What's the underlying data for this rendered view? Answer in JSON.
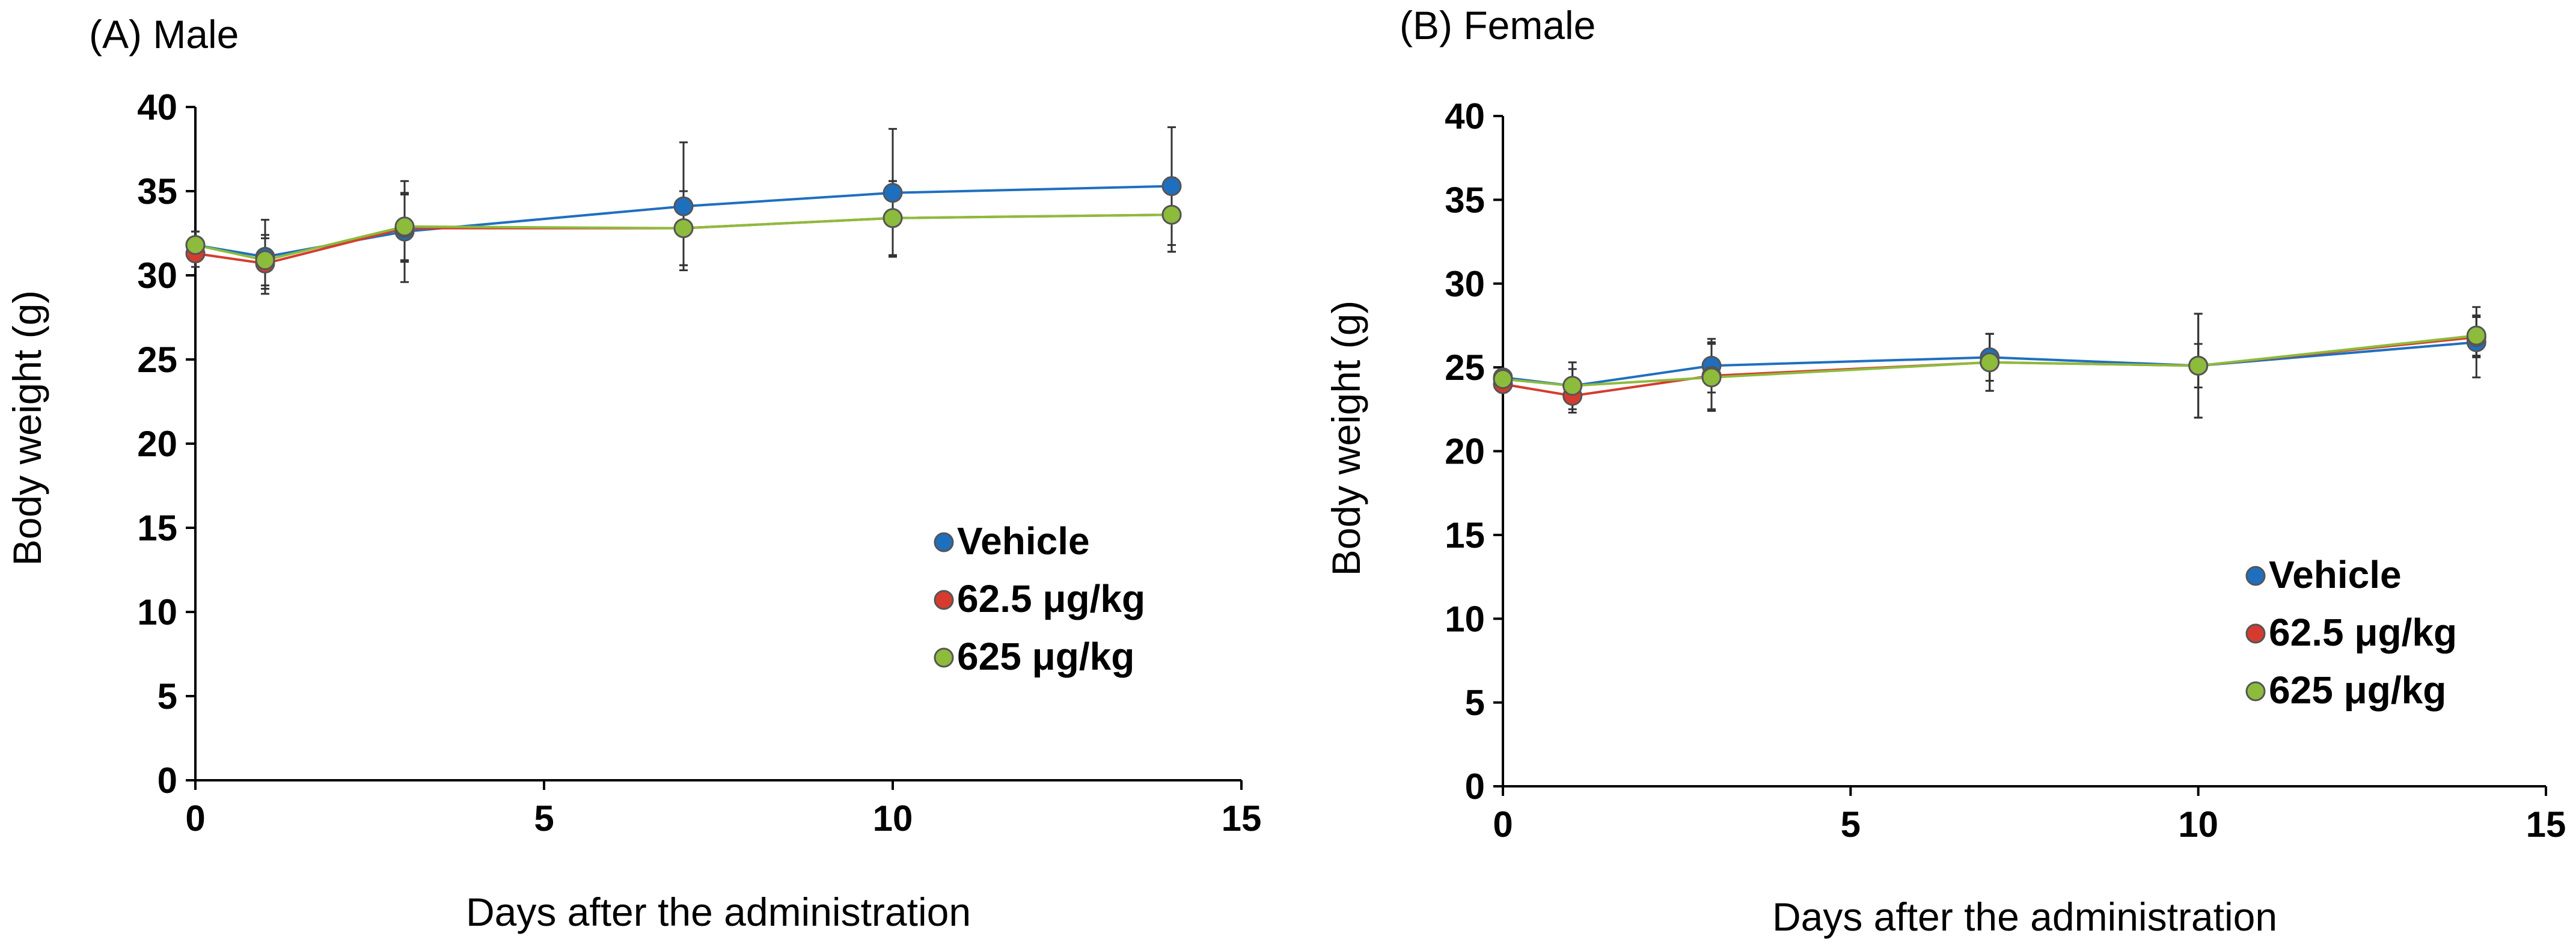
{
  "chart_data": [
    {
      "type": "line",
      "title": "(A) Male",
      "xlabel": "Days after the administration",
      "ylabel": "Body weight (g)",
      "xlim": [
        0,
        15
      ],
      "ylim": [
        0,
        40
      ],
      "xticks": [
        0,
        5,
        10,
        15
      ],
      "yticks": [
        0,
        5,
        10,
        15,
        20,
        25,
        30,
        35,
        40
      ],
      "grid": false,
      "legend_position": "bottom-right",
      "x": [
        0,
        1,
        3,
        7,
        10,
        14
      ],
      "series": [
        {
          "name": "Vehicle",
          "color": "#1f6fbf",
          "values": [
            31.8,
            31.1,
            32.6,
            34.1,
            34.9,
            35.3
          ],
          "err": [
            0.8,
            2.2,
            3.0,
            3.8,
            3.8,
            3.5
          ]
        },
        {
          "name": "62.5 μg/kg",
          "color": "#d63b2f",
          "values": [
            31.3,
            30.7,
            32.8,
            32.8,
            33.4,
            33.6
          ],
          "err": [
            0.8,
            1.5,
            2.0,
            2.2,
            2.2,
            2.2
          ]
        },
        {
          "name": "625 μg/kg",
          "color": "#8dbb3c",
          "values": [
            31.8,
            30.9,
            32.9,
            32.8,
            33.4,
            33.6
          ],
          "err": [
            0.8,
            1.5,
            2.0,
            2.2,
            2.2,
            2.2
          ]
        }
      ]
    },
    {
      "type": "line",
      "title": "(B) Female",
      "xlabel": "Days after the administration",
      "ylabel": "Body weight (g)",
      "xlim": [
        0,
        15
      ],
      "ylim": [
        0,
        40
      ],
      "xticks": [
        0,
        5,
        10,
        15
      ],
      "yticks": [
        0,
        5,
        10,
        15,
        20,
        25,
        30,
        35,
        40
      ],
      "grid": false,
      "legend_position": "bottom-right",
      "x": [
        0,
        1,
        3,
        7,
        10,
        14
      ],
      "series": [
        {
          "name": "Vehicle",
          "color": "#1f6fbf",
          "values": [
            24.4,
            23.9,
            25.1,
            25.6,
            25.1,
            26.5
          ],
          "err": [
            0.5,
            1.4,
            1.6,
            1.4,
            1.3,
            2.1
          ]
        },
        {
          "name": "62.5 μg/kg",
          "color": "#d63b2f",
          "values": [
            24.0,
            23.3,
            24.5,
            25.3,
            25.1,
            26.8
          ],
          "err": [
            0.5,
            1.0,
            2.0,
            1.7,
            3.1,
            1.2
          ]
        },
        {
          "name": "625 μg/kg",
          "color": "#8dbb3c",
          "values": [
            24.3,
            23.9,
            24.4,
            25.3,
            25.1,
            26.9
          ],
          "err": [
            0.5,
            1.0,
            2.0,
            1.7,
            3.1,
            1.2
          ]
        }
      ]
    }
  ]
}
